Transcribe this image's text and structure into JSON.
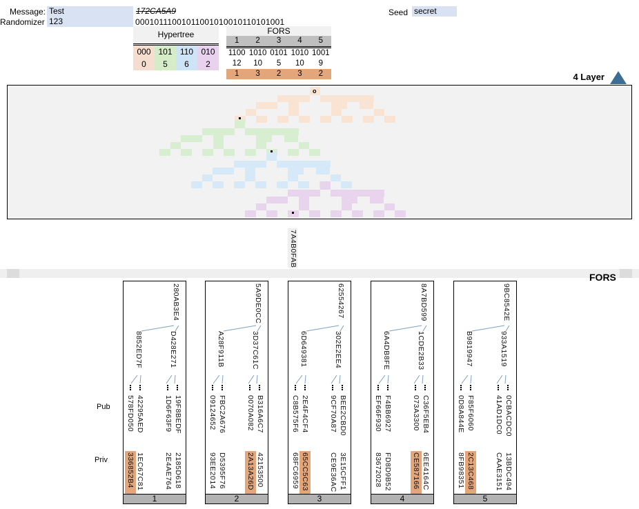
{
  "header": {
    "message_label": "Message:",
    "message_value": "Test",
    "randomizer_label": "Randomizer c:",
    "randomizer_value": "123",
    "hash_struck": "172CA5A9",
    "binary": "00010111001011001010010110101001",
    "seed_label": "Seed",
    "seed_value": "secret"
  },
  "hypertree_table": {
    "title": "Hypertree",
    "columns": [
      {
        "bits": "000",
        "value": "0",
        "color": "#f5ddd0"
      },
      {
        "bits": "101",
        "value": "5",
        "color": "#d6ecc9"
      },
      {
        "bits": "110",
        "value": "6",
        "color": "#cde4f6"
      },
      {
        "bits": "010",
        "value": "2",
        "color": "#e8d2ee"
      }
    ]
  },
  "fors_table": {
    "title": "FORS",
    "indices": [
      "1",
      "2",
      "3",
      "4",
      "5"
    ],
    "bits": [
      "1100",
      "1010",
      "0101",
      "1010",
      "1001"
    ],
    "values": [
      "12",
      "10",
      "5",
      "10",
      "9"
    ],
    "selected": [
      "1",
      "3",
      "2",
      "3",
      "2"
    ]
  },
  "layer_nav": {
    "label": "4 Layer"
  },
  "hypertree_panel": {
    "layers": [
      {
        "name": "layer-top",
        "color": "#f9e4d3",
        "marked_leaf": 0,
        "root_marker": "o"
      },
      {
        "name": "layer-2",
        "color": "#d8eed0",
        "marked_leaf": 5,
        "root_marker": ""
      },
      {
        "name": "layer-1",
        "color": "#d6e9f8",
        "marked_leaf": 6,
        "root_marker": ""
      },
      {
        "name": "layer-bottom",
        "color": "#e9d4ee",
        "marked_leaf": 2,
        "root_marker": ""
      }
    ]
  },
  "bridge": {
    "hash": "7A4B0FAB"
  },
  "fors_section": {
    "band_label": "FORS",
    "pub_label": "Pub",
    "priv_label": "Priv",
    "trees": [
      {
        "index": "1",
        "root": "280AB3E4",
        "left": "8852ED7F",
        "right": "D428E271",
        "pub": [
          "578FD050",
          "42295AED",
          "1D6F63F9",
          "19F8BEDF"
        ],
        "priv": [
          "336852B4",
          "1EC67C81",
          "2E4AE764",
          "2185D618"
        ],
        "selected_priv": 0
      },
      {
        "index": "2",
        "root": "5A9DE0CC",
        "left": "A28F911B",
        "right": "3D37C61C",
        "pub": [
          "09124652",
          "FBC2A676",
          "0070A082",
          "B316A6C7"
        ],
        "priv": [
          "93EE2014",
          "D5395F76",
          "2A13A26D",
          "42153500"
        ],
        "selected_priv": 2
      },
      {
        "index": "3",
        "root": "62554267",
        "left": "6D649381",
        "right": "302E2EE4",
        "pub": [
          "C8B575F6",
          "2E4F4CF4",
          "9CF70A87",
          "BEE2CBD0"
        ],
        "priv": [
          "68FC6959",
          "65CC5C63",
          "CE9E36AC",
          "3E15CFF1"
        ],
        "selected_priv": 1
      },
      {
        "index": "4",
        "root": "8A7BD599",
        "left": "6A4DB8FE",
        "right": "1CDE2B33",
        "pub": [
          "EF66F930",
          "F4BB6927",
          "073A3300",
          "C36F5EB4"
        ],
        "priv": [
          "83672028",
          "FD8D9B52",
          "CE587166",
          "6EE4164C"
        ],
        "selected_priv": 2
      },
      {
        "index": "5",
        "root": "9BC8542E",
        "left": "B9819947",
        "right": "933A1519",
        "pub": [
          "0D8A844E",
          "F85F6060",
          "41AD1DC0",
          "0CBACDC0"
        ],
        "priv": [
          "8FB98351",
          "2C13C468",
          "CAAE3151",
          "13BDC494"
        ],
        "selected_priv": 1
      }
    ]
  },
  "colors": {
    "input_bg": "#d9e2f3",
    "table_header_gray": "#bfbfbf",
    "selected_orange": "#e3a67b",
    "panel_bg": "#f2f2f2",
    "band_gray": "#efefef",
    "footer_gray": "#b2b2b2",
    "branch_line": "#7f9fc0",
    "triangle_blue": "#3e6d94"
  }
}
